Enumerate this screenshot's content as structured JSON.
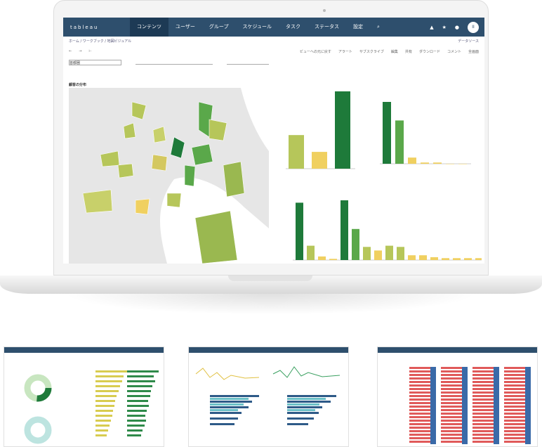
{
  "app": {
    "logo": "tableau",
    "nav": [
      "コンテンツ",
      "ユーザー",
      "グループ",
      "スケジュール",
      "タスク",
      "ステータス",
      "設定"
    ],
    "active_nav": "コンテンツ",
    "avatar": "II"
  },
  "breadcrumb": {
    "path": "ホーム / ワークブック / 地図ビジュアル",
    "right": "データソース"
  },
  "toolbar": {
    "items": [
      "ビューへの元に戻す",
      "アラート",
      "サブスクライブ",
      "編集",
      "共有",
      "ダウンロード",
      "コメント",
      "全画面"
    ]
  },
  "filters": {
    "select_value": "首都圏"
  },
  "map": {
    "title": "顧客の分布"
  },
  "colors": {
    "dark_green": "#1e7a3a",
    "mid_green": "#5aa84a",
    "olive": "#b6c65a",
    "yellow": "#f0d060",
    "nav": "#2e4f6d"
  },
  "chart_data": [
    {
      "type": "bar",
      "values": [
        10,
        5,
        23
      ]
    },
    {
      "type": "bar",
      "values": [
        100,
        70,
        10,
        2,
        2,
        0,
        0
      ]
    },
    {
      "type": "bar",
      "values": [
        24,
        6,
        1.5,
        0.5,
        25,
        13,
        5.5,
        4,
        6,
        5.5,
        2,
        2,
        1.2,
        0.8,
        0.8,
        0.8,
        0.8
      ]
    }
  ]
}
